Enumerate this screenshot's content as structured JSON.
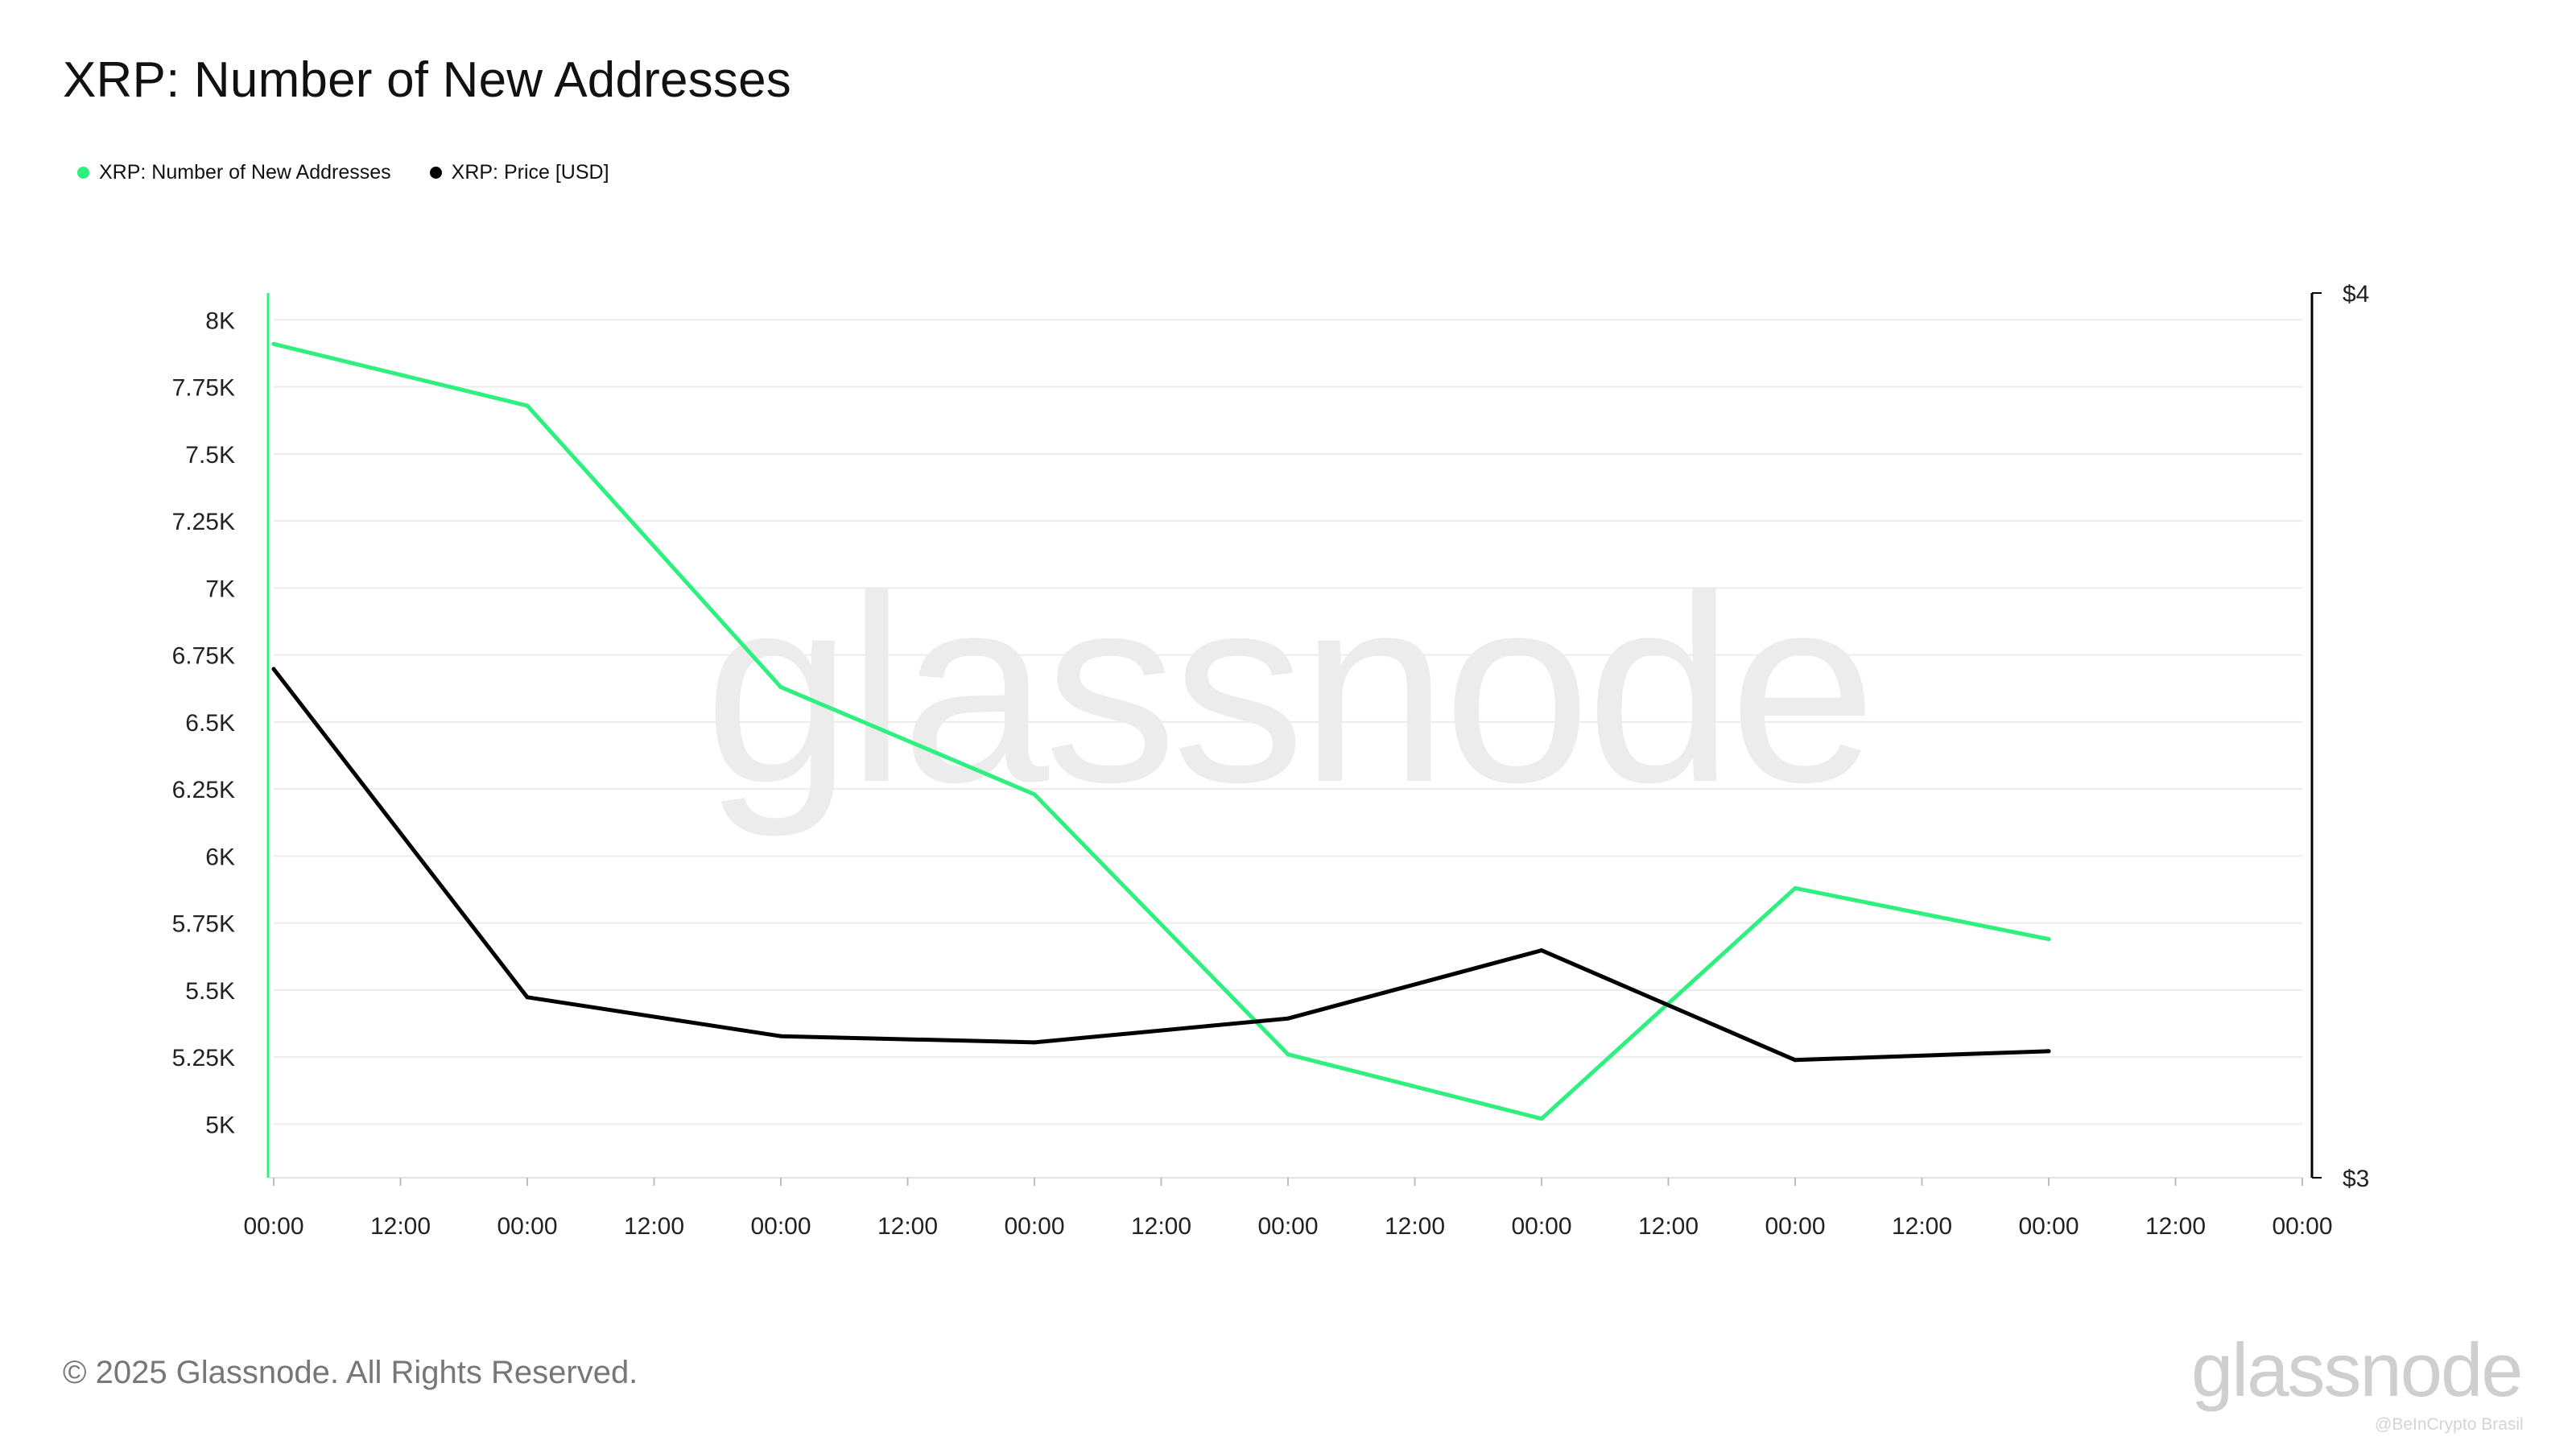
{
  "title": "XRP: Number of New Addresses",
  "footer": "© 2025 Glassnode. All Rights Reserved.",
  "brand": "glassnode",
  "watermark": "glassnode",
  "credit": "@BeInCrypto Brasil",
  "colors": {
    "addresses": "#2ef07f",
    "price": "#000000",
    "grid": "#ececec"
  },
  "chart_data": {
    "type": "line",
    "title": "XRP: Number of New Addresses",
    "x_tick_labels": [
      "00:00",
      "12:00",
      "00:00",
      "12:00",
      "00:00",
      "12:00",
      "00:00",
      "12:00",
      "00:00",
      "12:00",
      "00:00",
      "12:00",
      "00:00",
      "12:00",
      "00:00",
      "12:00",
      "00:00"
    ],
    "x_index": [
      0,
      2,
      4,
      6,
      8,
      10,
      12,
      14
    ],
    "x_range": [
      0,
      16
    ],
    "left_axis": {
      "ticks": [
        "8K",
        "7.75K",
        "7.5K",
        "7.25K",
        "7K",
        "6.75K",
        "6.5K",
        "6.25K",
        "6K",
        "5.75K",
        "5.5K",
        "5.25K",
        "5K"
      ],
      "tick_values": [
        8000,
        7750,
        7500,
        7250,
        7000,
        6750,
        6500,
        6250,
        6000,
        5750,
        5500,
        5250,
        5000
      ],
      "range": [
        4800,
        8100
      ]
    },
    "right_axis": {
      "ticks": [
        "$4",
        "$3"
      ],
      "tick_values": [
        4,
        3
      ],
      "range": [
        3,
        4
      ]
    },
    "grid": true,
    "legend_position": "top-left",
    "series": [
      {
        "name": "XRP: Number of New Addresses",
        "axis": "left",
        "color": "#2ef07f",
        "values": [
          7910,
          7680,
          6630,
          6230,
          5260,
          5020,
          5880,
          5690
        ]
      },
      {
        "name": "XRP: Price [USD]",
        "axis": "right",
        "color": "#000000",
        "values": [
          3.575,
          3.204,
          3.16,
          3.153,
          3.18,
          3.257,
          3.133,
          3.143
        ]
      }
    ]
  }
}
